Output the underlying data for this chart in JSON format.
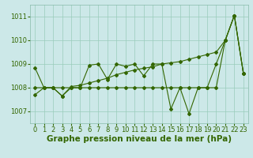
{
  "xlabel": "Graphe pression niveau de la mer (hPa)",
  "x": [
    0,
    1,
    2,
    3,
    4,
    5,
    6,
    7,
    8,
    9,
    10,
    11,
    12,
    13,
    14,
    15,
    16,
    17,
    18,
    19,
    20,
    21,
    22,
    23
  ],
  "line_jagged": [
    1007.7,
    1008.0,
    1008.0,
    1007.65,
    1008.0,
    1008.0,
    1008.95,
    1009.0,
    1008.35,
    1009.0,
    1008.9,
    1009.0,
    1008.5,
    1009.0,
    1009.0,
    1007.1,
    1008.0,
    1006.9,
    1008.0,
    1008.0,
    1009.0,
    1010.0,
    1011.05,
    1008.6
  ],
  "line_flat": [
    1008.85,
    1008.0,
    1008.0,
    1008.0,
    1008.0,
    1008.0,
    1008.0,
    1008.0,
    1008.0,
    1008.0,
    1008.0,
    1008.0,
    1008.0,
    1008.0,
    1008.0,
    1008.0,
    1008.0,
    1008.0,
    1008.0,
    1008.0,
    1008.0,
    1010.0,
    1011.05,
    1008.6
  ],
  "line_trend": [
    1008.0,
    1008.0,
    1008.0,
    1007.65,
    1008.05,
    1008.1,
    1008.2,
    1008.3,
    1008.4,
    1008.55,
    1008.65,
    1008.75,
    1008.82,
    1008.88,
    1009.0,
    1009.05,
    1009.1,
    1009.2,
    1009.3,
    1009.4,
    1009.5,
    1010.0,
    1011.05,
    1008.6
  ],
  "bg_color": "#cce8e8",
  "line_color": "#336600",
  "grid_color": "#99ccbb",
  "ylim": [
    1006.5,
    1011.5
  ],
  "yticks": [
    1007,
    1008,
    1009,
    1010,
    1011
  ],
  "tick_fontsize": 6.0,
  "xlabel_fontsize": 7.5,
  "linewidth": 0.8,
  "marker_size": 2.0
}
